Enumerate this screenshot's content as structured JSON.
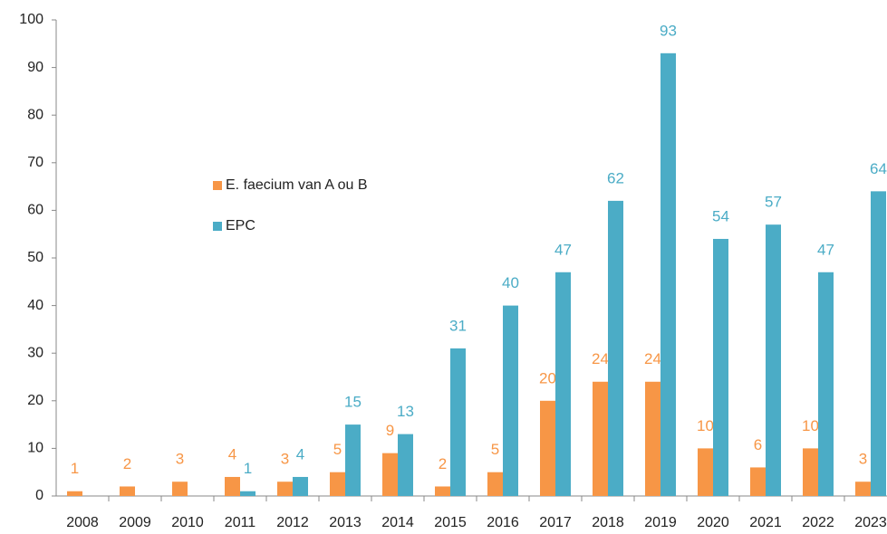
{
  "chart_data": {
    "type": "bar",
    "categories": [
      "2008",
      "2009",
      "2010",
      "2011",
      "2012",
      "2013",
      "2014",
      "2015",
      "2016",
      "2017",
      "2018",
      "2019",
      "2020",
      "2021",
      "2022",
      "2023"
    ],
    "series": [
      {
        "name": "E. faecium van A ou B",
        "color": "#f79646",
        "values": [
          1,
          2,
          3,
          4,
          3,
          5,
          9,
          2,
          5,
          20,
          24,
          24,
          10,
          6,
          10,
          3
        ]
      },
      {
        "name": "EPC",
        "color": "#4bacc6",
        "values": [
          null,
          null,
          null,
          1,
          4,
          15,
          13,
          31,
          40,
          47,
          62,
          93,
          54,
          57,
          47,
          64
        ]
      }
    ],
    "ylim": [
      0,
      100
    ],
    "yticks": [
      0,
      10,
      20,
      30,
      40,
      50,
      60,
      70,
      80,
      90,
      100
    ],
    "grid": false
  }
}
